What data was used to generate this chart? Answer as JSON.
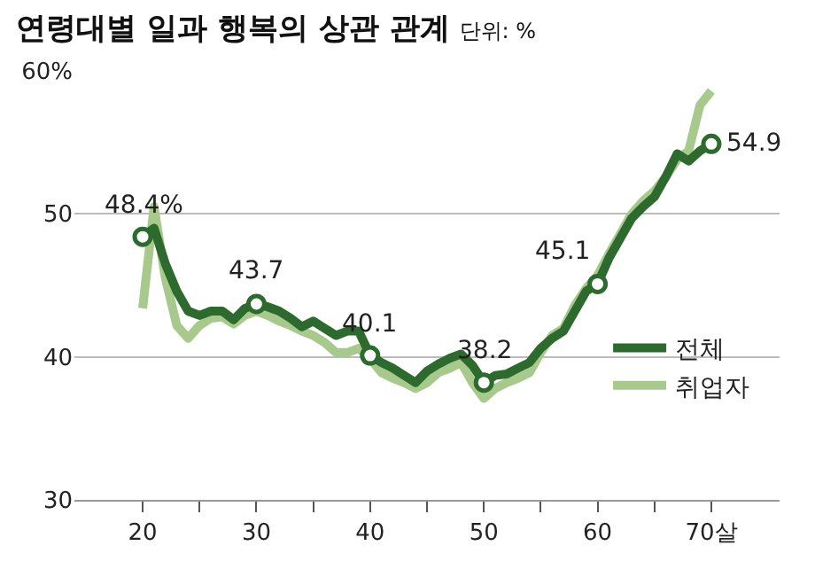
{
  "chart_data": {
    "type": "line",
    "title": "연령대별 일과 행복의 상관 관계",
    "subtitle": "단위: %",
    "x": [
      20,
      21,
      22,
      23,
      24,
      25,
      26,
      27,
      28,
      29,
      30,
      31,
      32,
      33,
      34,
      35,
      36,
      37,
      38,
      39,
      40,
      41,
      42,
      43,
      44,
      45,
      46,
      47,
      48,
      49,
      50,
      51,
      52,
      53,
      54,
      55,
      56,
      57,
      58,
      59,
      60,
      61,
      62,
      63,
      64,
      65,
      66,
      67,
      68,
      69,
      70
    ],
    "series": [
      {
        "name": "취업자",
        "color": "#a8c98c",
        "values": [
          43.4,
          50.5,
          45.5,
          42.2,
          41.3,
          42.2,
          42.7,
          42.8,
          42.3,
          42.9,
          43.2,
          42.9,
          42.5,
          42.2,
          41.8,
          41.5,
          41.0,
          40.3,
          40.3,
          40.6,
          39.9,
          38.9,
          38.5,
          38.2,
          37.8,
          38.2,
          38.9,
          39.2,
          39.6,
          38.2,
          37.1,
          37.8,
          38.2,
          38.5,
          38.9,
          40.3,
          41.5,
          42.0,
          43.6,
          44.8,
          45.7,
          47.2,
          48.6,
          50.0,
          50.9,
          51.6,
          52.6,
          53.8,
          54.4,
          57.6,
          58.6
        ]
      },
      {
        "name": "전체",
        "color": "#2d6a2d",
        "values": [
          48.4,
          49.0,
          46.5,
          44.6,
          43.2,
          42.9,
          43.2,
          43.2,
          42.6,
          43.4,
          43.7,
          43.5,
          43.2,
          42.7,
          42.1,
          42.5,
          42.0,
          41.5,
          41.8,
          41.8,
          40.1,
          39.6,
          39.2,
          38.7,
          38.2,
          39.0,
          39.5,
          39.9,
          40.2,
          39.4,
          38.2,
          38.7,
          38.8,
          39.2,
          39.6,
          40.6,
          41.3,
          41.8,
          43.2,
          44.6,
          45.1,
          46.9,
          48.3,
          49.7,
          50.5,
          51.2,
          52.6,
          54.2,
          53.7,
          54.4,
          54.9
        ],
        "value_labels": [
          "48.4%",
          null,
          null,
          null,
          null,
          null,
          null,
          null,
          null,
          null,
          "43.7",
          null,
          null,
          null,
          null,
          null,
          null,
          null,
          null,
          null,
          "40.1",
          null,
          null,
          null,
          null,
          null,
          null,
          null,
          null,
          null,
          "38.2",
          null,
          null,
          null,
          null,
          null,
          null,
          null,
          null,
          null,
          "45.1",
          null,
          null,
          null,
          null,
          null,
          null,
          null,
          null,
          null,
          "54.9"
        ]
      }
    ],
    "xlim": [
      14,
      76
    ],
    "xticks": [
      20,
      {
        "value": 25,
        "label": null
      },
      30,
      {
        "value": 35,
        "label": null
      },
      40,
      {
        "value": 45,
        "label": null
      },
      50,
      {
        "value": 55,
        "label": null
      },
      60,
      {
        "value": 65,
        "label": null
      },
      {
        "value": 70,
        "label": "70살"
      }
    ],
    "ylim": [
      30,
      60
    ],
    "yticks": [
      30,
      40,
      50,
      {
        "value": 60,
        "label": "60%"
      }
    ],
    "grid": "y",
    "legend": "bottom right",
    "line_style": "solid"
  }
}
